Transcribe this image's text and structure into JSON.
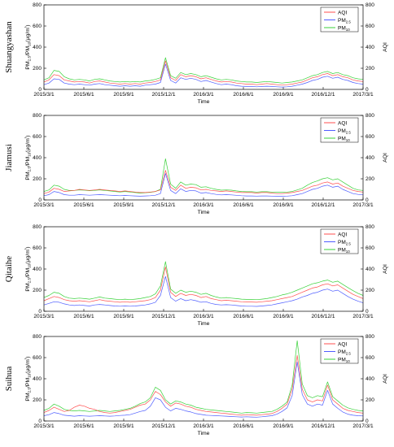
{
  "chart_data": [
    {
      "type": "line",
      "station": "Shuangyashan",
      "xlabel": "Time",
      "ylabel_left": "PM2.5/PM10(μg/m³)",
      "ylabel_right": "AQI",
      "x_ticks": [
        "2015/3/1",
        "2015/6/1",
        "2015/9/1",
        "2015/12/1",
        "2016/3/1",
        "2016/6/1",
        "2016/9/1",
        "2016/12/1",
        "2017/3/1"
      ],
      "ylim": [
        0,
        800
      ],
      "y_ticks": [
        0,
        200,
        400,
        600,
        800
      ],
      "legend": [
        "AQI",
        "PM2.5",
        "PM10"
      ],
      "legend_position": "top-right",
      "series": [
        {
          "name": "AQI",
          "color": "#ff3b3b",
          "values": [
            70,
            90,
            140,
            130,
            90,
            80,
            70,
            75,
            70,
            60,
            75,
            80,
            70,
            60,
            55,
            50,
            55,
            50,
            55,
            50,
            60,
            65,
            75,
            90,
            270,
            110,
            85,
            140,
            120,
            130,
            120,
            100,
            110,
            95,
            80,
            70,
            75,
            70,
            60,
            55,
            50,
            50,
            45,
            50,
            55,
            50,
            45,
            40,
            45,
            50,
            60,
            70,
            90,
            110,
            120,
            140,
            150,
            130,
            140,
            120,
            110,
            90,
            80,
            75
          ]
        },
        {
          "name": "PM2.5",
          "color": "#3b4bff",
          "values": [
            45,
            60,
            100,
            95,
            60,
            50,
            45,
            50,
            45,
            40,
            50,
            55,
            45,
            40,
            35,
            30,
            35,
            30,
            35,
            30,
            40,
            45,
            50,
            65,
            240,
            85,
            60,
            110,
            95,
            105,
            95,
            75,
            85,
            70,
            55,
            45,
            50,
            45,
            35,
            30,
            28,
            28,
            25,
            28,
            30,
            28,
            25,
            22,
            25,
            30,
            40,
            50,
            65,
            85,
            95,
            115,
            125,
            105,
            115,
            95,
            85,
            65,
            55,
            50
          ]
        },
        {
          "name": "PM10",
          "color": "#22cc22",
          "values": [
            90,
            110,
            180,
            170,
            120,
            100,
            90,
            95,
            90,
            80,
            95,
            100,
            90,
            80,
            75,
            70,
            75,
            70,
            75,
            70,
            80,
            85,
            95,
            110,
            300,
            130,
            105,
            160,
            140,
            150,
            140,
            120,
            130,
            115,
            100,
            90,
            95,
            90,
            80,
            75,
            70,
            70,
            65,
            70,
            75,
            70,
            65,
            60,
            65,
            70,
            80,
            90,
            110,
            130,
            140,
            160,
            170,
            150,
            160,
            140,
            130,
            110,
            100,
            95
          ]
        }
      ]
    },
    {
      "type": "line",
      "station": "Jiamusi",
      "xlabel": "Time",
      "ylabel_left": "PM2.5/PM10(μg/m³)",
      "ylabel_right": "AQI",
      "x_ticks": [
        "2015/3/1",
        "2015/6/1",
        "2015/9/1",
        "2015/12/1",
        "2016/3/1",
        "2016/6/1",
        "2016/9/1",
        "2016/12/1",
        "2017/3/1"
      ],
      "ylim": [
        0,
        800
      ],
      "y_ticks": [
        0,
        200,
        400,
        600,
        800
      ],
      "legend": [
        "AQI",
        "PM2.5",
        "PM10"
      ],
      "legend_position": "top-right",
      "series": [
        {
          "name": "AQI",
          "color": "#ff3b3b",
          "values": [
            60,
            75,
            110,
            100,
            80,
            85,
            90,
            100,
            95,
            90,
            95,
            100,
            95,
            90,
            85,
            80,
            85,
            80,
            75,
            70,
            70,
            75,
            80,
            95,
            280,
            120,
            90,
            140,
            110,
            120,
            115,
            95,
            100,
            90,
            85,
            80,
            85,
            80,
            75,
            70,
            70,
            70,
            65,
            70,
            70,
            65,
            60,
            60,
            65,
            70,
            80,
            90,
            110,
            130,
            140,
            160,
            170,
            150,
            160,
            130,
            110,
            90,
            80,
            75
          ]
        },
        {
          "name": "PM2.5",
          "color": "#3b4bff",
          "values": [
            40,
            50,
            80,
            70,
            50,
            45,
            45,
            50,
            48,
            45,
            48,
            50,
            48,
            45,
            42,
            40,
            42,
            40,
            38,
            35,
            38,
            40,
            45,
            60,
            250,
            90,
            60,
            105,
            80,
            90,
            85,
            65,
            70,
            60,
            52,
            48,
            50,
            48,
            44,
            40,
            38,
            38,
            36,
            38,
            38,
            36,
            34,
            34,
            36,
            40,
            50,
            60,
            80,
            100,
            110,
            130,
            140,
            120,
            130,
            100,
            80,
            60,
            52,
            48
          ]
        },
        {
          "name": "PM10",
          "color": "#22cc22",
          "values": [
            80,
            95,
            140,
            130,
            100,
            90,
            90,
            95,
            92,
            88,
            90,
            95,
            90,
            85,
            80,
            75,
            80,
            75,
            70,
            65,
            68,
            72,
            80,
            100,
            390,
            150,
            110,
            170,
            140,
            150,
            145,
            120,
            125,
            110,
            100,
            92,
            95,
            92,
            85,
            80,
            78,
            78,
            75,
            78,
            78,
            75,
            72,
            72,
            75,
            80,
            95,
            110,
            140,
            165,
            180,
            200,
            210,
            190,
            200,
            170,
            140,
            110,
            95,
            90
          ]
        }
      ]
    },
    {
      "type": "line",
      "station": "Qitaihe",
      "xlabel": "Time",
      "ylabel_left": "PM2.5/PM10(μg/m³)",
      "ylabel_right": "AQI",
      "x_ticks": [
        "2015/3/1",
        "2015/6/1",
        "2015/9/1",
        "2015/12/1",
        "2016/3/1",
        "2016/6/1",
        "2016/9/1",
        "2016/12/1",
        "2017/3/1"
      ],
      "ylim": [
        0,
        800
      ],
      "y_ticks": [
        0,
        200,
        400,
        600,
        800
      ],
      "legend": [
        "AQI",
        "PM2.5",
        "PM10"
      ],
      "legend_position": "top-right",
      "series": [
        {
          "name": "AQI",
          "color": "#ff3b3b",
          "values": [
            100,
            120,
            140,
            130,
            110,
            100,
            95,
            100,
            95,
            90,
            100,
            110,
            100,
            95,
            90,
            85,
            90,
            85,
            90,
            95,
            100,
            110,
            130,
            200,
            420,
            180,
            140,
            170,
            150,
            160,
            150,
            130,
            140,
            120,
            110,
            100,
            105,
            100,
            95,
            90,
            88,
            88,
            85,
            90,
            95,
            100,
            110,
            120,
            130,
            140,
            160,
            180,
            200,
            220,
            230,
            250,
            260,
            240,
            250,
            220,
            190,
            160,
            140,
            120
          ]
        },
        {
          "name": "PM2.5",
          "color": "#3b4bff",
          "values": [
            60,
            75,
            90,
            85,
            70,
            60,
            55,
            60,
            55,
            50,
            60,
            65,
            60,
            55,
            50,
            48,
            50,
            48,
            50,
            55,
            60,
            70,
            85,
            150,
            330,
            130,
            95,
            120,
            100,
            110,
            100,
            85,
            90,
            75,
            65,
            60,
            62,
            60,
            55,
            50,
            48,
            48,
            46,
            50,
            55,
            60,
            70,
            80,
            90,
            100,
            115,
            135,
            150,
            170,
            180,
            200,
            210,
            190,
            200,
            170,
            140,
            115,
            95,
            80
          ]
        },
        {
          "name": "PM10",
          "color": "#22cc22",
          "values": [
            130,
            150,
            180,
            170,
            140,
            125,
            120,
            125,
            120,
            115,
            125,
            135,
            125,
            120,
            115,
            110,
            115,
            110,
            115,
            120,
            130,
            140,
            165,
            240,
            470,
            210,
            170,
            200,
            180,
            190,
            180,
            160,
            170,
            150,
            135,
            125,
            130,
            125,
            120,
            115,
            112,
            112,
            110,
            115,
            120,
            130,
            140,
            155,
            165,
            180,
            200,
            220,
            240,
            260,
            270,
            285,
            295,
            275,
            285,
            255,
            225,
            195,
            170,
            150
          ]
        }
      ]
    },
    {
      "type": "line",
      "station": "Suihua",
      "xlabel": "Time",
      "ylabel_left": "PM2.5/PM10(μg/m³)",
      "ylabel_right": "AQI",
      "x_ticks": [
        "2015/3/1",
        "2015/6/1",
        "2015/9/1",
        "2015/12/1",
        "2016/3/1",
        "2016/6/1",
        "2016/9/1",
        "2016/12/1",
        "2017/3/1"
      ],
      "ylim": [
        0,
        800
      ],
      "y_ticks": [
        0,
        200,
        400,
        600,
        800
      ],
      "legend": [
        "AQI",
        "PM2.5",
        "PM10"
      ],
      "legend_position": "top-right",
      "series": [
        {
          "name": "AQI",
          "color": "#ff3b3b",
          "values": [
            80,
            100,
            130,
            110,
            90,
            100,
            130,
            150,
            140,
            120,
            110,
            90,
            80,
            75,
            80,
            90,
            100,
            110,
            130,
            150,
            160,
            200,
            280,
            250,
            180,
            140,
            170,
            160,
            140,
            130,
            110,
            100,
            90,
            85,
            80,
            75,
            70,
            65,
            60,
            55,
            60,
            58,
            55,
            60,
            65,
            70,
            90,
            120,
            160,
            300,
            620,
            300,
            200,
            180,
            200,
            190,
            340,
            200,
            160,
            120,
            100,
            90,
            80,
            75
          ]
        },
        {
          "name": "PM2.5",
          "color": "#3b4bff",
          "values": [
            50,
            60,
            80,
            70,
            55,
            50,
            45,
            50,
            48,
            45,
            48,
            50,
            48,
            45,
            48,
            52,
            55,
            60,
            75,
            90,
            100,
            140,
            220,
            200,
            130,
            95,
            120,
            110,
            95,
            85,
            70,
            62,
            55,
            52,
            50,
            48,
            45,
            42,
            40,
            38,
            40,
            38,
            36,
            40,
            45,
            50,
            65,
            90,
            125,
            240,
            560,
            250,
            160,
            140,
            160,
            150,
            290,
            160,
            120,
            85,
            65,
            55,
            50,
            48
          ]
        },
        {
          "name": "PM10",
          "color": "#22cc22",
          "values": [
            100,
            120,
            160,
            140,
            110,
            100,
            95,
            100,
            95,
            90,
            95,
            100,
            95,
            90,
            95,
            100,
            110,
            120,
            140,
            165,
            180,
            220,
            320,
            290,
            200,
            160,
            190,
            180,
            160,
            150,
            130,
            120,
            110,
            105,
            100,
            95,
            90,
            85,
            80,
            75,
            80,
            78,
            75,
            80,
            85,
            90,
            110,
            140,
            180,
            340,
            760,
            350,
            240,
            220,
            240,
            230,
            370,
            230,
            190,
            150,
            125,
            110,
            100,
            95
          ]
        }
      ]
    }
  ]
}
